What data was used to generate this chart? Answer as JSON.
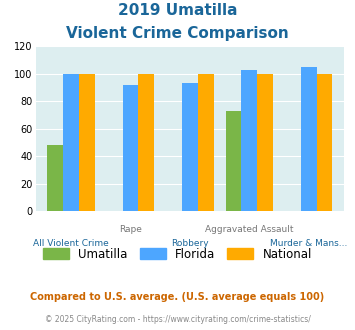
{
  "title_line1": "2019 Umatilla",
  "title_line2": "Violent Crime Comparison",
  "categories": [
    "All Violent Crime",
    "Rape",
    "Robbery",
    "Aggravated Assault",
    "Murder & Mans..."
  ],
  "umatilla": [
    48,
    0,
    0,
    73,
    0
  ],
  "florida": [
    100,
    92,
    93,
    103,
    105
  ],
  "national": [
    100,
    100,
    100,
    100,
    100
  ],
  "umatilla_color": "#7ab648",
  "florida_color": "#4da6ff",
  "national_color": "#ffaa00",
  "bg_color": "#ddeef0",
  "ylim": [
    0,
    120
  ],
  "yticks": [
    0,
    20,
    40,
    60,
    80,
    100,
    120
  ],
  "footer1": "Compared to U.S. average. (U.S. average equals 100)",
  "footer2": "© 2025 CityRating.com - https://www.cityrating.com/crime-statistics/",
  "title_color": "#1a6699",
  "footer1_color": "#cc6600",
  "footer2_color": "#888888"
}
